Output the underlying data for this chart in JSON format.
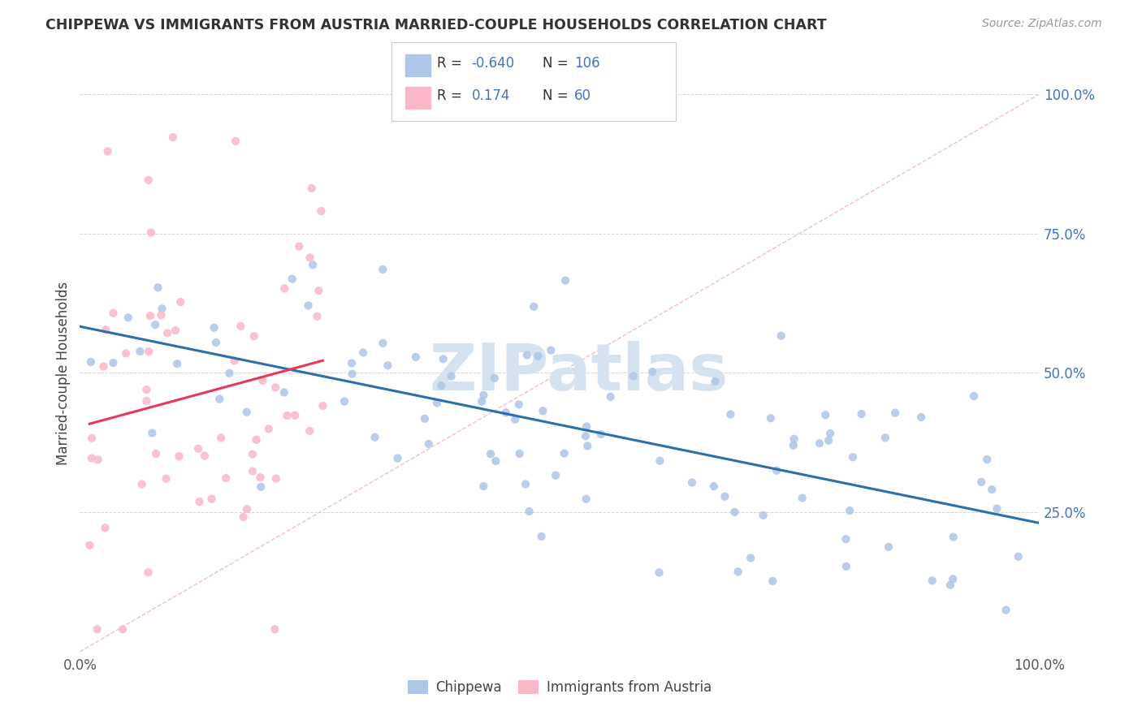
{
  "title": "CHIPPEWA VS IMMIGRANTS FROM AUSTRIA MARRIED-COUPLE HOUSEHOLDS CORRELATION CHART",
  "source": "Source: ZipAtlas.com",
  "ylabel": "Married-couple Households",
  "legend_entry1": {
    "color": "#aec6e8",
    "R": "-0.640",
    "N": "106",
    "label": "Chippewa"
  },
  "legend_entry2": {
    "color": "#f9b8c8",
    "R": "0.174",
    "N": "60",
    "label": "Immigrants from Austria"
  },
  "blue_scatter_color": "#aec6e8",
  "pink_scatter_color": "#f9b8c8",
  "blue_line_color": "#2c6fad",
  "pink_line_color": "#e8365d",
  "diagonal_line_color": "#f0b8c8",
  "watermark_color": "#d5e3f0",
  "background_color": "#ffffff",
  "right_tick_color": "#4472c4",
  "grid_color": "#cccccc",
  "xlim": [
    0.0,
    1.0
  ],
  "ylim": [
    0.0,
    1.0
  ]
}
